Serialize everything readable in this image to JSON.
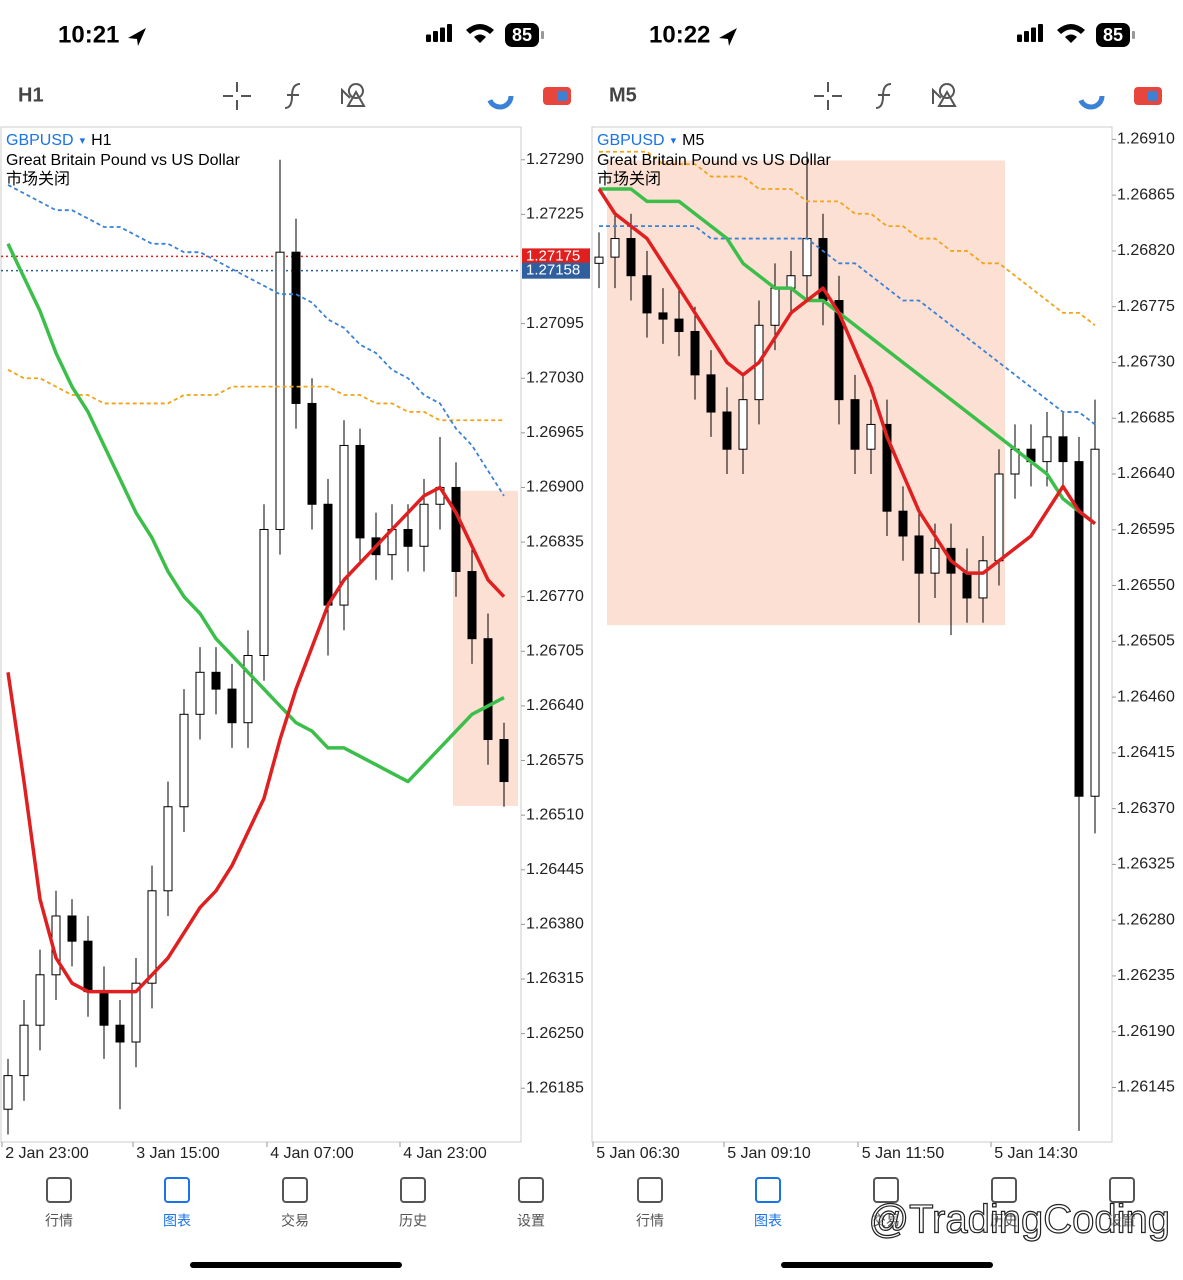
{
  "screens": [
    {
      "status_bar": {
        "time": "10:21",
        "battery": "85"
      },
      "chart_data": {
        "type": "candlestick",
        "symbol": "GBPUSD",
        "timeframe": "H1",
        "description": "Great Britain Pound vs US Dollar",
        "status": "市场关闭",
        "ylim": [
          1.26121,
          1.27329
        ],
        "yticks": [
          {
            "value": 1.2729,
            "label": "1.27290"
          },
          1.27225,
          1.27095,
          {
            "value": 1.2703,
            "label": "1.27030"
          },
          1.26965,
          {
            "value": 1.269,
            "label": "1.26900"
          },
          1.26835,
          {
            "value": 1.2677,
            "label": "1.26770"
          },
          1.26705,
          {
            "value": 1.2664,
            "label": "1.26640"
          },
          1.26575,
          {
            "value": 1.2651,
            "label": "1.26510"
          },
          1.26445,
          {
            "value": 1.2638,
            "label": "1.26380"
          },
          1.26315,
          {
            "value": 1.2625,
            "label": "1.26250"
          },
          1.26185
        ],
        "xticks": [
          "2 Jan 23:00",
          "3 Jan 15:00",
          "4 Jan 07:00",
          "4 Jan 23:00"
        ],
        "open": [
          1.2616,
          1.262,
          1.2626,
          1.2632,
          1.2639,
          1.2636,
          1.263,
          1.2626,
          1.2624,
          1.2631,
          1.2642,
          1.2652,
          1.2663,
          1.2668,
          1.2666,
          1.2662,
          1.267,
          1.2685,
          1.2718,
          1.27,
          1.2688,
          1.2676,
          1.2695,
          1.2684,
          1.2682,
          1.2685,
          1.2683,
          1.2688,
          1.269,
          1.268,
          1.2672,
          1.266
        ],
        "high": [
          1.2622,
          1.2629,
          1.2635,
          1.2642,
          1.2641,
          1.2639,
          1.2633,
          1.2629,
          1.2634,
          1.2645,
          1.2655,
          1.2666,
          1.2671,
          1.2671,
          1.2669,
          1.2673,
          1.2688,
          1.2729,
          1.2722,
          1.2703,
          1.2691,
          1.2698,
          1.2697,
          1.2687,
          1.2688,
          1.2688,
          1.2691,
          1.2696,
          1.2693,
          1.2683,
          1.2675,
          1.2662
        ],
        "low": [
          1.2613,
          1.2617,
          1.2623,
          1.2629,
          1.2633,
          1.2627,
          1.2622,
          1.2616,
          1.2621,
          1.2628,
          1.2639,
          1.2649,
          1.266,
          1.2663,
          1.2659,
          1.2659,
          1.2667,
          1.2682,
          1.2697,
          1.2685,
          1.267,
          1.2673,
          1.2681,
          1.2679,
          1.2679,
          1.268,
          1.268,
          1.2685,
          1.2677,
          1.2669,
          1.2657,
          1.2652
        ],
        "close": [
          1.262,
          1.2626,
          1.2632,
          1.2639,
          1.2636,
          1.263,
          1.2626,
          1.2624,
          1.2631,
          1.2642,
          1.2652,
          1.2663,
          1.2668,
          1.2666,
          1.2662,
          1.267,
          1.2685,
          1.2718,
          1.27,
          1.2688,
          1.2676,
          1.2695,
          1.2684,
          1.2682,
          1.2685,
          1.2683,
          1.2688,
          1.269,
          1.268,
          1.2672,
          1.266,
          1.2655
        ],
        "moving_averages": [
          {
            "color": "#f0a41c",
            "dashed": true,
            "values": [
              1.2704,
              1.2703,
              1.2703,
              1.2702,
              1.2701,
              1.2701,
              1.27,
              1.27,
              1.27,
              1.27,
              1.27,
              1.2701,
              1.2701,
              1.2701,
              1.2702,
              1.2702,
              1.2702,
              1.2702,
              1.2702,
              1.2702,
              1.2702,
              1.2701,
              1.2701,
              1.27,
              1.27,
              1.2699,
              1.2699,
              1.2698,
              1.2698,
              1.2698,
              1.2698,
              1.2698
            ]
          },
          {
            "color": "#3b82d6",
            "dashed": true,
            "values": [
              1.2726,
              1.2725,
              1.2724,
              1.2723,
              1.2723,
              1.2722,
              1.2721,
              1.2721,
              1.272,
              1.2719,
              1.2719,
              1.2718,
              1.2718,
              1.2717,
              1.2716,
              1.2715,
              1.2714,
              1.2713,
              1.2713,
              1.2712,
              1.271,
              1.2709,
              1.2707,
              1.2706,
              1.2704,
              1.2703,
              1.2701,
              1.27,
              1.2697,
              1.2695,
              1.2692,
              1.2689
            ]
          },
          {
            "color": "#3cbf4a",
            "dashed": false,
            "values": [
              1.2719,
              1.2715,
              1.2711,
              1.2706,
              1.2702,
              1.2699,
              1.2695,
              1.2691,
              1.2687,
              1.2684,
              1.268,
              1.2677,
              1.2675,
              1.2672,
              1.267,
              1.2668,
              1.2666,
              1.2664,
              1.2662,
              1.2661,
              1.2659,
              1.2659,
              1.2658,
              1.2657,
              1.2656,
              1.2655,
              1.2657,
              1.2659,
              1.2661,
              1.2663,
              1.2664,
              1.2665
            ]
          },
          {
            "color": "#e02020",
            "dashed": false,
            "values": [
              1.2668,
              1.2655,
              1.2641,
              1.2634,
              1.2631,
              1.263,
              1.263,
              1.263,
              1.263,
              1.2632,
              1.2634,
              1.2637,
              1.264,
              1.2642,
              1.2645,
              1.2649,
              1.2653,
              1.266,
              1.2666,
              1.2671,
              1.2676,
              1.2679,
              1.2681,
              1.2683,
              1.2685,
              1.2687,
              1.2689,
              1.269,
              1.2687,
              1.2683,
              1.2679,
              1.2677
            ]
          }
        ],
        "price_lines": [
          {
            "value": 1.27175,
            "color": "#e0201e"
          },
          {
            "value": 1.27158,
            "color": "#2f5f9e"
          }
        ],
        "highlight": {
          "low": 1.26521,
          "high": 1.26896,
          "color": "#fde0d4"
        }
      },
      "tab_bar": {
        "tabs": [
          "行情",
          "图表",
          "交易",
          "历史",
          "设置"
        ],
        "active": 1
      }
    },
    {
      "status_bar": {
        "time": "10:22",
        "battery": "85"
      },
      "chart_data": {
        "type": "candlestick",
        "symbol": "GBPUSD",
        "timeframe": "M5",
        "description": "Great Britain Pound vs US Dollar",
        "status": "市场关闭",
        "ylim": [
          1.26101,
          1.2692
        ],
        "yticks": [
          {
            "value": 1.2691,
            "label": "1.26910"
          },
          1.26865,
          {
            "value": 1.2682,
            "label": "1.26820"
          },
          1.26775,
          {
            "value": 1.2673,
            "label": "1.26730"
          },
          1.26685,
          {
            "value": 1.2664,
            "label": "1.26640"
          },
          1.26595,
          {
            "value": 1.2655,
            "label": "1.26550"
          },
          1.26505,
          {
            "value": 1.2646,
            "label": "1.26460"
          },
          1.26415,
          {
            "value": 1.2637,
            "label": "1.26370"
          },
          1.26325,
          {
            "value": 1.2628,
            "label": "1.26280"
          },
          1.26235,
          {
            "value": 1.2619,
            "label": "1.26190"
          },
          1.26145
        ],
        "xticks": [
          "5 Jan 06:30",
          "5 Jan 09:10",
          "5 Jan 11:50",
          "5 Jan 14:30"
        ],
        "open": [
          1.2681,
          1.26815,
          1.2683,
          1.268,
          1.2677,
          1.26765,
          1.26755,
          1.2672,
          1.2669,
          1.2666,
          1.267,
          1.2676,
          1.2679,
          1.268,
          1.2683,
          1.2678,
          1.267,
          1.2666,
          1.2668,
          1.2661,
          1.2659,
          1.2656,
          1.2658,
          1.2656,
          1.2654,
          1.2657,
          1.2664,
          1.2666,
          1.2665,
          1.2667,
          1.2665,
          1.2638
        ],
        "high": [
          1.26835,
          1.2685,
          1.2685,
          1.2682,
          1.2679,
          1.2679,
          1.26775,
          1.2674,
          1.2671,
          1.2672,
          1.2678,
          1.2681,
          1.2682,
          1.269,
          1.2685,
          1.268,
          1.2672,
          1.267,
          1.267,
          1.2663,
          1.2661,
          1.266,
          1.266,
          1.2658,
          1.2659,
          1.2666,
          1.2668,
          1.2668,
          1.2669,
          1.2669,
          1.2667,
          1.267
        ],
        "low": [
          1.2679,
          1.2679,
          1.2678,
          1.2675,
          1.26745,
          1.26735,
          1.267,
          1.2667,
          1.2664,
          1.2664,
          1.2668,
          1.2674,
          1.2677,
          1.2678,
          1.2676,
          1.2668,
          1.2664,
          1.2664,
          1.2659,
          1.2657,
          1.2652,
          1.2654,
          1.2651,
          1.2652,
          1.2652,
          1.2655,
          1.2662,
          1.2663,
          1.2663,
          1.2663,
          1.2611,
          1.2635
        ],
        "close": [
          1.26815,
          1.2683,
          1.268,
          1.2677,
          1.26765,
          1.26755,
          1.2672,
          1.2669,
          1.2666,
          1.267,
          1.2676,
          1.2679,
          1.268,
          1.2683,
          1.2678,
          1.267,
          1.2666,
          1.2668,
          1.2661,
          1.2659,
          1.2656,
          1.2658,
          1.2656,
          1.2654,
          1.2657,
          1.2664,
          1.2666,
          1.2665,
          1.2667,
          1.2665,
          1.2638,
          1.2666
        ],
        "moving_averages": [
          {
            "color": "#f0a41c",
            "dashed": true,
            "values": [
              1.269,
              1.269,
              1.269,
              1.269,
              1.2689,
              1.2689,
              1.2689,
              1.2688,
              1.2688,
              1.2688,
              1.2687,
              1.2687,
              1.2687,
              1.2686,
              1.2686,
              1.2686,
              1.2685,
              1.2685,
              1.2684,
              1.2684,
              1.2683,
              1.2683,
              1.2682,
              1.2682,
              1.2681,
              1.2681,
              1.268,
              1.2679,
              1.2678,
              1.2677,
              1.2677,
              1.2676
            ]
          },
          {
            "color": "#3b82d6",
            "dashed": true,
            "values": [
              1.2684,
              1.2684,
              1.2684,
              1.2684,
              1.2684,
              1.2684,
              1.2684,
              1.2683,
              1.2683,
              1.2683,
              1.2683,
              1.2683,
              1.2683,
              1.2683,
              1.2682,
              1.2681,
              1.2681,
              1.268,
              1.2679,
              1.2678,
              1.2678,
              1.2677,
              1.2676,
              1.2675,
              1.2674,
              1.2673,
              1.2672,
              1.2671,
              1.267,
              1.2669,
              1.2669,
              1.2668
            ]
          },
          {
            "color": "#3cbf4a",
            "dashed": false,
            "values": [
              1.2687,
              1.2687,
              1.2687,
              1.2686,
              1.2686,
              1.2686,
              1.2685,
              1.2684,
              1.2683,
              1.2681,
              1.268,
              1.2679,
              1.2679,
              1.2678,
              1.2678,
              1.2677,
              1.2676,
              1.2675,
              1.2674,
              1.2673,
              1.2672,
              1.2671,
              1.267,
              1.2669,
              1.2668,
              1.2667,
              1.2666,
              1.2665,
              1.2664,
              1.2662,
              1.2661,
              1.266
            ]
          },
          {
            "color": "#e02020",
            "dashed": false,
            "values": [
              1.2687,
              1.2685,
              1.2684,
              1.2683,
              1.2681,
              1.2679,
              1.2677,
              1.2675,
              1.2673,
              1.2672,
              1.2673,
              1.2675,
              1.2677,
              1.2678,
              1.2679,
              1.2677,
              1.2674,
              1.2671,
              1.2667,
              1.2664,
              1.2661,
              1.2659,
              1.2657,
              1.2656,
              1.2656,
              1.2657,
              1.2658,
              1.2659,
              1.2661,
              1.2663,
              1.2661,
              1.266
            ]
          }
        ],
        "price_lines": [],
        "highlight": {
          "low": 1.26518,
          "high": 1.26893,
          "color": "#fde0d4"
        }
      },
      "tab_bar": {
        "tabs": [
          "行情",
          "图表",
          "交易",
          "历史",
          "设置"
        ],
        "active": 1
      }
    }
  ],
  "watermark": "@TradingCoding"
}
